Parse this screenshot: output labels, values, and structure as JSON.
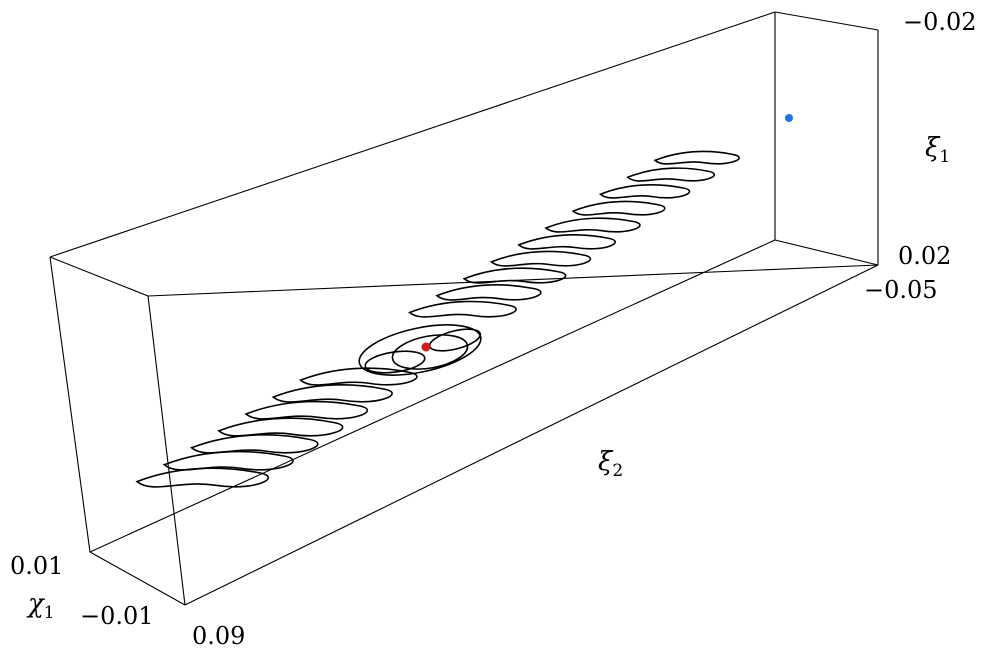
{
  "chart_data": {
    "type": "3d-curves",
    "axes": {
      "xi1": {
        "label": "ξ",
        "label_sub": "1",
        "ticks": [
          "−0.02",
          "0.02"
        ]
      },
      "xi2": {
        "label": "ξ",
        "label_sub": "2",
        "ticks": [
          "−0.05",
          "0.09"
        ]
      },
      "chi1": {
        "label": "χ",
        "label_sub": "1",
        "ticks": [
          "0.01",
          "−0.01"
        ]
      }
    },
    "points": [
      {
        "name": "red-point",
        "color": "#d01c1c"
      },
      {
        "name": "blue-point",
        "color": "#1f78e0"
      }
    ],
    "curve_count": 20
  }
}
